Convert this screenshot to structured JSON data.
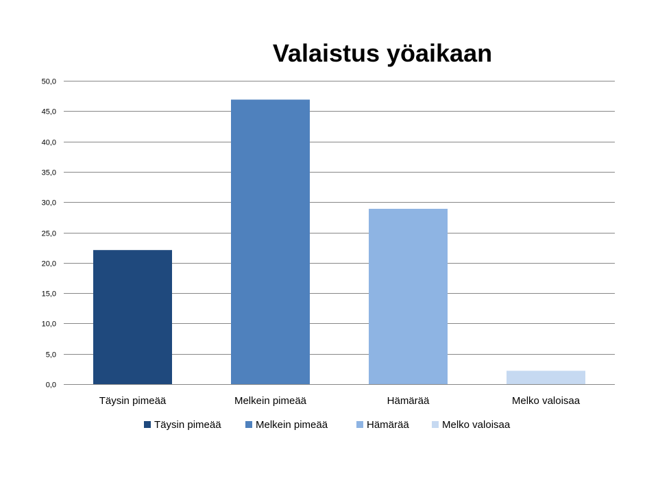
{
  "chart_data": {
    "type": "bar",
    "title": "Valaistus yöaikaan",
    "xlabel": "",
    "ylabel": "",
    "categories": [
      "Täysin pimeää",
      "Melkein pimeää",
      "Hämärää",
      "Melko valoisaa"
    ],
    "values": [
      22.1,
      46.9,
      28.9,
      2.2
    ],
    "ylim": [
      0,
      50
    ],
    "y_ticks": [
      "0,0",
      "5,0",
      "10,0",
      "15,0",
      "20,0",
      "25,0",
      "30,0",
      "35,0",
      "40,0",
      "45,0",
      "50,0"
    ],
    "colors": [
      "#1f497d",
      "#4f81bd",
      "#8eb4e3",
      "#c6d9f1"
    ],
    "grid": true,
    "legend_position": "bottom",
    "legend": [
      "Täysin pimeää",
      "Melkein pimeää",
      "Hämärää",
      "Melko valoisaa"
    ]
  }
}
